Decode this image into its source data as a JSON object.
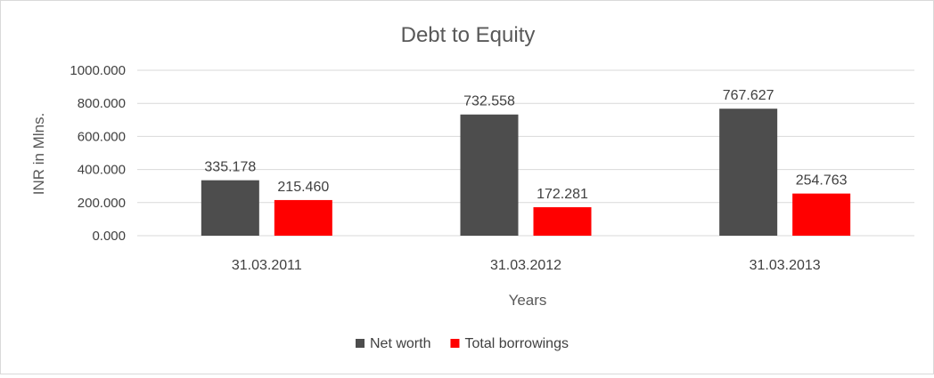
{
  "chart_data": {
    "type": "bar",
    "title": "Debt to Equity",
    "xlabel": "Years",
    "ylabel": "INR in Mlns.",
    "categories": [
      "31.03.2011",
      "31.03.2012",
      "31.03.2013"
    ],
    "series": [
      {
        "name": "Net worth",
        "color": "#4d4d4d",
        "values": [
          335.178,
          732.558,
          767.627
        ],
        "labels": [
          "335.178",
          "732.558",
          "767.627"
        ]
      },
      {
        "name": "Total borrowings",
        "color": "#ff0000",
        "values": [
          215.46,
          172.281,
          254.763
        ],
        "labels": [
          "215.460",
          "172.281",
          "254.763"
        ]
      }
    ],
    "ylim": [
      0,
      1000
    ],
    "yticks": [
      0,
      200,
      400,
      600,
      800,
      1000
    ],
    "ytick_labels": [
      "0.000",
      "200.000",
      "400.000",
      "600.000",
      "800.000",
      "1000.000"
    ],
    "grid": true,
    "legend": "bottom"
  }
}
